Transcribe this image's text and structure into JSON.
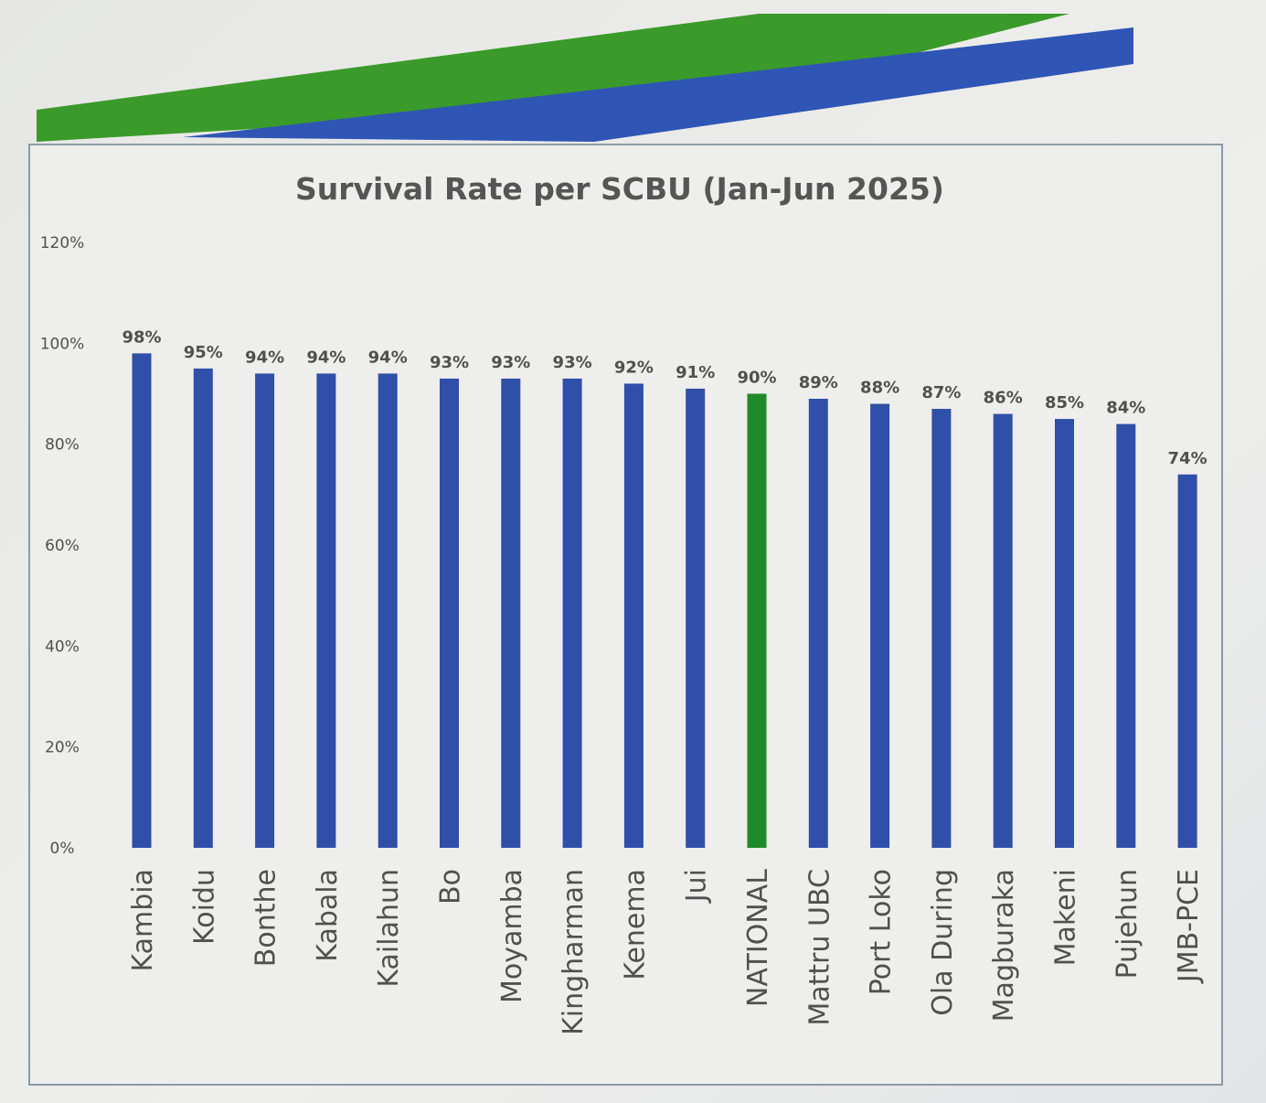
{
  "chart_data": {
    "type": "bar",
    "title": "Survival Rate per SCBU (Jan-Jun 2025)",
    "xlabel": "",
    "ylabel": "",
    "ylim": [
      0,
      120
    ],
    "yticks": [
      "0%",
      "20%",
      "40%",
      "60%",
      "80%",
      "100%",
      "120%"
    ],
    "grid": false,
    "categories": [
      "Kambia",
      "Koidu",
      "Bonthe",
      "Kabala",
      "Kailahun",
      "Bo",
      "Moyamba",
      "Kingharman",
      "Kenema",
      "Jui",
      "NATIONAL",
      "Mattru UBC",
      "Port Loko",
      "Ola During",
      "Magburaka",
      "Makeni",
      "Pujehun",
      "JMB-PCE"
    ],
    "values": [
      98,
      95,
      94,
      94,
      94,
      93,
      93,
      93,
      92,
      91,
      90,
      89,
      88,
      87,
      86,
      85,
      84,
      74
    ],
    "data_labels": [
      "98%",
      "95%",
      "94%",
      "94%",
      "94%",
      "93%",
      "93%",
      "93%",
      "92%",
      "91%",
      "90%",
      "89%",
      "88%",
      "87%",
      "86%",
      "85%",
      "84%",
      "74%"
    ],
    "highlight_category": "NATIONAL",
    "colors": {
      "bar": "#2f4fa8",
      "highlight": "#1f8a2a",
      "text": "#505050"
    }
  }
}
